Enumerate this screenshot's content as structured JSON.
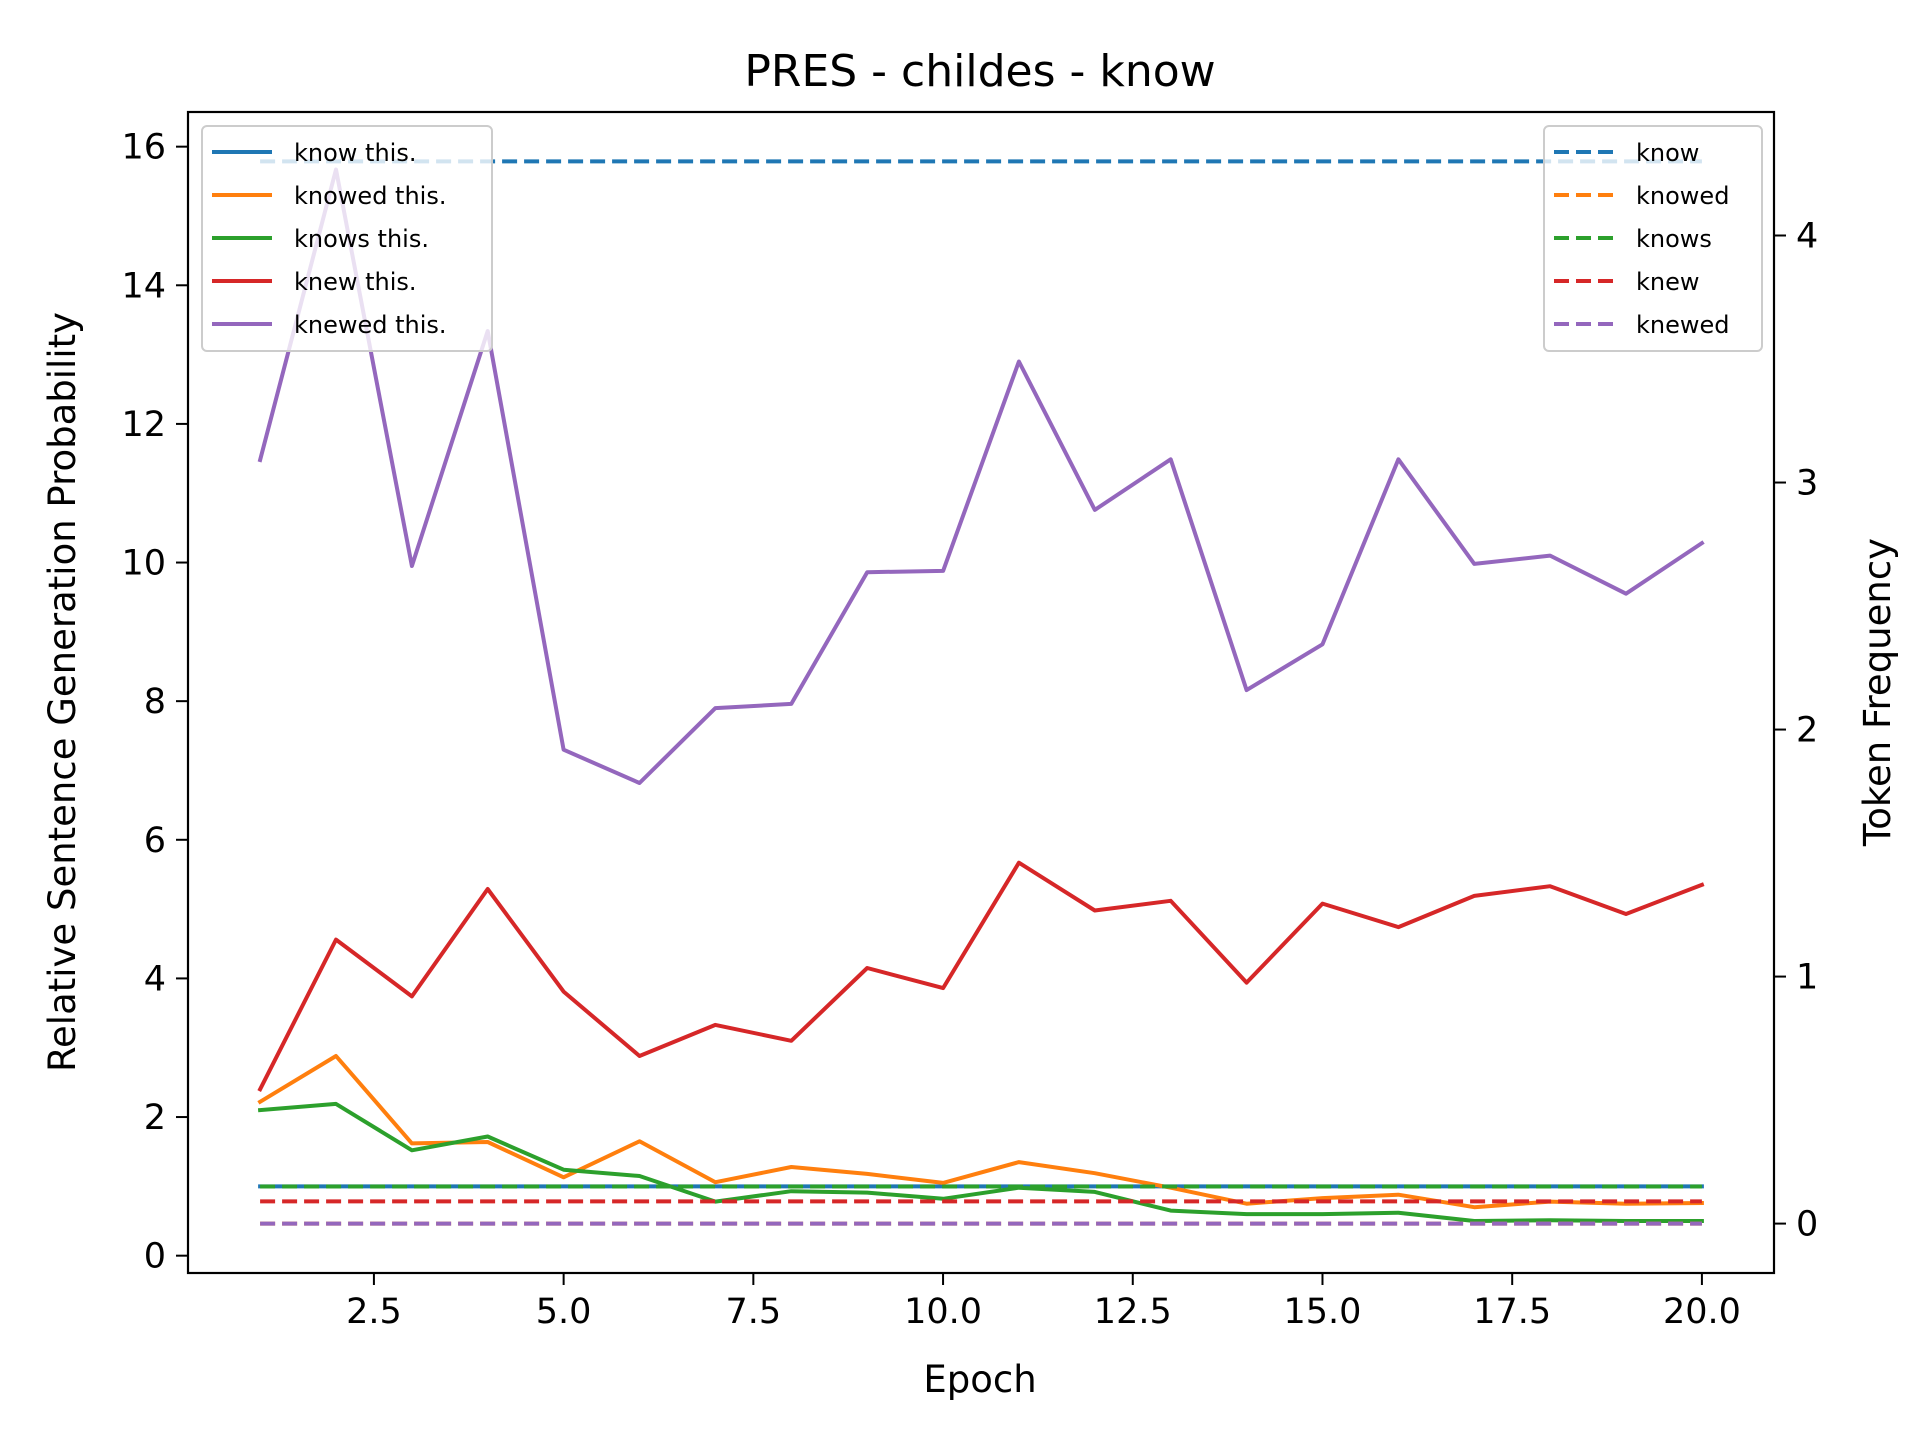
{
  "chart_data": {
    "type": "line",
    "title": "PRES - childes - know",
    "xlabel": "Epoch",
    "ylabel": "Relative Sentence Generation Probability",
    "y2label": "Token Frequency",
    "xlim": [
      0.05,
      20.95
    ],
    "ylim": [
      -0.25,
      16.5
    ],
    "y2lim": [
      -0.2,
      4.5
    ],
    "xticks": [
      2.5,
      5.0,
      7.5,
      10.0,
      12.5,
      15.0,
      17.5,
      20.0
    ],
    "xtick_labels": [
      "2.5",
      "5.0",
      "7.5",
      "10.0",
      "12.5",
      "15.0",
      "17.5",
      "20.0"
    ],
    "yticks": [
      0,
      2,
      4,
      6,
      8,
      10,
      12,
      14,
      16
    ],
    "ytick_labels": [
      "0",
      "2",
      "4",
      "6",
      "8",
      "10",
      "12",
      "14",
      "16"
    ],
    "y2ticks": [
      0,
      1,
      2,
      3,
      4
    ],
    "y2tick_labels": [
      "0",
      "1",
      "2",
      "3",
      "4"
    ],
    "grid": false,
    "x": [
      1,
      2,
      3,
      4,
      5,
      6,
      7,
      8,
      9,
      10,
      11,
      12,
      13,
      14,
      15,
      16,
      17,
      18,
      19,
      20
    ],
    "series": [
      {
        "name": "know this.",
        "color": "#1f77b4",
        "axis": "left",
        "style": "solid",
        "values": [
          1.0,
          1.0,
          1.0,
          1.0,
          1.0,
          1.0,
          1.0,
          1.0,
          1.0,
          1.0,
          1.0,
          1.0,
          1.0,
          1.0,
          1.0,
          1.0,
          1.0,
          1.0,
          1.0,
          1.0
        ]
      },
      {
        "name": "knowed this.",
        "color": "#ff7f0e",
        "axis": "left",
        "style": "solid",
        "values": [
          2.22,
          2.88,
          1.62,
          1.64,
          1.13,
          1.65,
          1.06,
          1.28,
          1.18,
          1.05,
          1.35,
          1.19,
          0.98,
          0.75,
          0.83,
          0.88,
          0.7,
          0.78,
          0.75,
          0.76
        ]
      },
      {
        "name": "knows this.",
        "color": "#2ca02c",
        "axis": "left",
        "style": "solid",
        "values": [
          2.1,
          2.19,
          1.52,
          1.72,
          1.24,
          1.15,
          0.78,
          0.93,
          0.91,
          0.82,
          0.98,
          0.92,
          0.65,
          0.6,
          0.6,
          0.62,
          0.5,
          0.51,
          0.5,
          0.5
        ]
      },
      {
        "name": "knew this.",
        "color": "#d62728",
        "axis": "left",
        "style": "solid",
        "values": [
          2.4,
          4.56,
          3.74,
          5.29,
          3.81,
          2.88,
          3.33,
          3.1,
          4.15,
          3.86,
          5.67,
          4.98,
          5.12,
          3.94,
          5.08,
          4.74,
          5.19,
          5.33,
          4.93,
          5.35
        ]
      },
      {
        "name": "knewed this.",
        "color": "#9467bd",
        "axis": "left",
        "style": "solid",
        "values": [
          11.48,
          15.67,
          9.95,
          13.34,
          7.3,
          6.82,
          7.9,
          7.96,
          9.86,
          9.88,
          12.9,
          10.76,
          11.49,
          8.16,
          8.82,
          11.49,
          9.98,
          10.1,
          9.55,
          10.28
        ]
      },
      {
        "name": "know",
        "color": "#1f77b4",
        "axis": "right",
        "style": "dashed",
        "values": [
          4.3,
          4.3,
          4.3,
          4.3,
          4.3,
          4.3,
          4.3,
          4.3,
          4.3,
          4.3,
          4.3,
          4.3,
          4.3,
          4.3,
          4.3,
          4.3,
          4.3,
          4.3,
          4.3,
          4.3
        ]
      },
      {
        "name": "knowed",
        "color": "#ff7f0e",
        "axis": "right",
        "style": "dashed",
        "values": [
          0,
          0,
          0,
          0,
          0,
          0,
          0,
          0,
          0,
          0,
          0,
          0,
          0,
          0,
          0,
          0,
          0,
          0,
          0,
          0
        ]
      },
      {
        "name": "knows",
        "color": "#2ca02c",
        "axis": "right",
        "style": "dashed",
        "values": [
          0.15,
          0.15,
          0.15,
          0.15,
          0.15,
          0.15,
          0.15,
          0.15,
          0.15,
          0.15,
          0.15,
          0.15,
          0.15,
          0.15,
          0.15,
          0.15,
          0.15,
          0.15,
          0.15,
          0.15
        ]
      },
      {
        "name": "knew",
        "color": "#d62728",
        "axis": "right",
        "style": "dashed",
        "values": [
          0.09,
          0.09,
          0.09,
          0.09,
          0.09,
          0.09,
          0.09,
          0.09,
          0.09,
          0.09,
          0.09,
          0.09,
          0.09,
          0.09,
          0.09,
          0.09,
          0.09,
          0.09,
          0.09,
          0.09
        ]
      },
      {
        "name": "knewed",
        "color": "#9467bd",
        "axis": "right",
        "style": "dashed",
        "values": [
          0,
          0,
          0,
          0,
          0,
          0,
          0,
          0,
          0,
          0,
          0,
          0,
          0,
          0,
          0,
          0,
          0,
          0,
          0,
          0
        ]
      }
    ],
    "legend_left": {
      "placement": "upper-left"
    },
    "legend_right": {
      "placement": "upper-right"
    }
  }
}
